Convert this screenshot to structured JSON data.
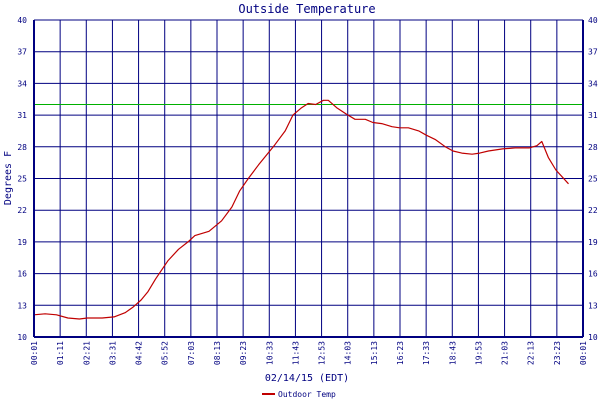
{
  "chart_data": {
    "type": "line",
    "title": "Outside Temperature",
    "xlabel": "02/14/15 (EDT)",
    "ylabel": "Degrees F",
    "ylim": [
      10,
      40
    ],
    "yticks": [
      10,
      13,
      16,
      19,
      22,
      25,
      28,
      31,
      34,
      37,
      40
    ],
    "xticks": [
      "00:01",
      "01:11",
      "02:21",
      "03:31",
      "04:42",
      "05:52",
      "07:03",
      "08:13",
      "09:23",
      "10:33",
      "11:43",
      "12:53",
      "14:03",
      "15:13",
      "16:23",
      "17:33",
      "18:43",
      "19:53",
      "21:03",
      "22:13",
      "23:23",
      "00:01"
    ],
    "grid": true,
    "legend_position": "bottom",
    "reference_line": {
      "value": 32,
      "color": "#00b000"
    },
    "series": [
      {
        "name": "Outdoor Temp",
        "color": "#c00000",
        "x": [
          "00:01",
          "00:30",
          "01:00",
          "01:30",
          "02:00",
          "02:21",
          "03:00",
          "03:31",
          "04:00",
          "04:20",
          "04:42",
          "05:00",
          "05:20",
          "05:52",
          "06:20",
          "06:45",
          "07:03",
          "07:40",
          "08:13",
          "08:40",
          "09:00",
          "09:23",
          "09:50",
          "10:33",
          "11:00",
          "11:20",
          "11:43",
          "12:00",
          "12:20",
          "12:40",
          "12:53",
          "13:15",
          "13:40",
          "14:03",
          "14:30",
          "14:50",
          "15:13",
          "15:40",
          "16:00",
          "16:23",
          "16:50",
          "17:10",
          "17:33",
          "18:00",
          "18:20",
          "18:43",
          "19:10",
          "19:30",
          "19:53",
          "20:30",
          "21:03",
          "21:40",
          "22:00",
          "22:13",
          "22:30",
          "22:50",
          "23:23"
        ],
        "y": [
          12.1,
          12.2,
          12.1,
          11.8,
          11.7,
          11.8,
          11.8,
          11.9,
          12.3,
          12.8,
          13.5,
          14.3,
          15.5,
          17.2,
          18.3,
          19.0,
          19.6,
          20.0,
          21.0,
          22.3,
          23.8,
          25.0,
          26.3,
          28.2,
          29.5,
          31.0,
          31.7,
          32.1,
          32.0,
          32.4,
          32.4,
          31.7,
          31.1,
          30.6,
          30.6,
          30.3,
          30.2,
          29.9,
          29.8,
          29.8,
          29.5,
          29.1,
          28.7,
          28.0,
          27.6,
          27.4,
          27.3,
          27.4,
          27.6,
          27.8,
          27.9,
          27.9,
          28.1,
          28.5,
          27.0,
          25.8,
          24.5
        ]
      }
    ]
  }
}
